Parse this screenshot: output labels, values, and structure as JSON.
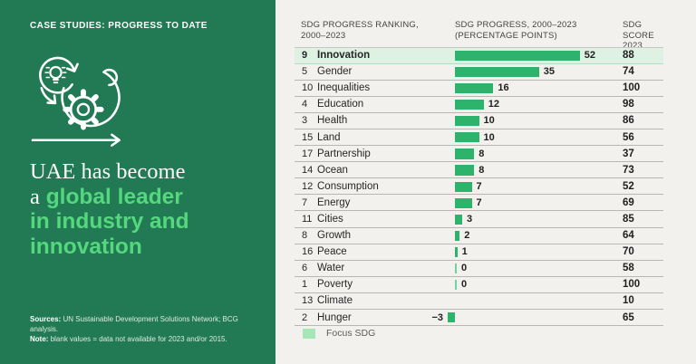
{
  "left": {
    "eyebrow": "CASE STUDIES: PROGRESS TO DATE",
    "icon": "innovation-process-icon",
    "title_line1": "UAE has become",
    "title_line2_prefix": "a",
    "title_line2_highlight": "global leader",
    "title_line3": "in industry and",
    "title_line4": "innovation",
    "sources_label": "Sources:",
    "sources_text": "UN Sustainable Development Solutions Network; BCG analysis.",
    "note_label": "Note:",
    "note_text": "blank values = data not available for 2023 and/or 2015."
  },
  "table": {
    "headers": [
      {
        "line1": "SDG PROGRESS RANKING,",
        "line2": "2000–2023"
      },
      {
        "line1": "SDG PROGRESS, 2000–2023",
        "line2": "(PERCENTAGE POINTS)"
      },
      {
        "line1": "SDG SCORE",
        "line2": "2023"
      }
    ]
  },
  "legend": {
    "label": "Focus SDG"
  },
  "colors": {
    "panel_green": "#217a54",
    "accent_green": "#55d87d",
    "bar_green": "#2eb36d",
    "focus_row_bg": "#def1e3",
    "legend_swatch": "#a4e6b6",
    "canvas_bg": "#f2f1ee"
  },
  "chart_data": {
    "type": "bar",
    "orientation": "horizontal",
    "title": "UAE has become a global leader in industry and innovation",
    "xlabel": "SDG PROGRESS, 2000–2023 (PERCENTAGE POINTS)",
    "legend_entries": [
      "Focus SDG"
    ],
    "categories": [
      "Innovation",
      "Gender",
      "Inequalities",
      "Education",
      "Health",
      "Land",
      "Partnership",
      "Ocean",
      "Consumption",
      "Energy",
      "Cities",
      "Growth",
      "Peace",
      "Water",
      "Poverty",
      "Climate",
      "Hunger"
    ],
    "rankings_2000_2023": [
      9,
      5,
      10,
      4,
      3,
      15,
      17,
      14,
      12,
      7,
      11,
      8,
      16,
      6,
      1,
      13,
      2
    ],
    "progress_2000_2023_pp": [
      52,
      35,
      16,
      12,
      10,
      10,
      8,
      8,
      7,
      7,
      3,
      2,
      1,
      0,
      0,
      null,
      -3
    ],
    "sdg_score_2023": [
      88,
      74,
      100,
      98,
      86,
      56,
      37,
      73,
      52,
      69,
      85,
      64,
      70,
      58,
      100,
      10,
      65
    ],
    "focus_sdg": [
      "Innovation"
    ],
    "xlim": [
      -5,
      60
    ],
    "grid": false
  }
}
